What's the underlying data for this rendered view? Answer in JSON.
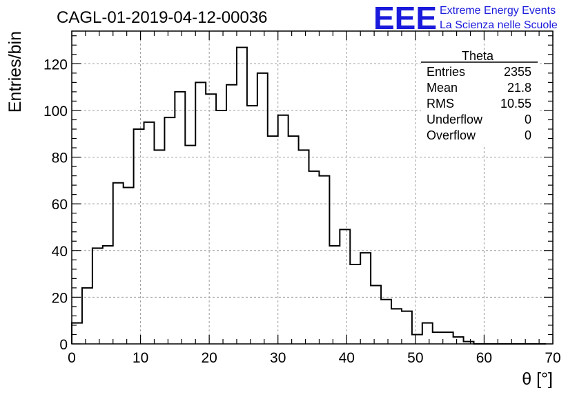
{
  "header": {
    "title": "CAGL-01-2019-04-12-00036",
    "logo_text": "EEE",
    "logo_line1": "Extreme Energy Events",
    "logo_line2": "La Scienza nelle Scuole",
    "logo_color": "#1a1adc"
  },
  "stats_box": {
    "name": "Theta",
    "rows": [
      {
        "label": "Entries",
        "value": "2355"
      },
      {
        "label": "Mean",
        "value": "21.8"
      },
      {
        "label": "RMS",
        "value": "10.55"
      },
      {
        "label": "Underflow",
        "value": "0"
      },
      {
        "label": "Overflow",
        "value": "0"
      }
    ]
  },
  "chart_data": {
    "type": "bar",
    "histogram_style": "step",
    "title": "CAGL-01-2019-04-12-00036",
    "xlabel": "θ [°]",
    "ylabel": "Entries/bin",
    "xlim": [
      0,
      70
    ],
    "ylim": [
      0,
      134
    ],
    "xticks": [
      0,
      10,
      20,
      30,
      40,
      50,
      60,
      70
    ],
    "yticks": [
      0,
      20,
      40,
      60,
      80,
      100,
      120
    ],
    "grid": true,
    "legend_position": "top-right",
    "bin_edges_start": 0,
    "bin_width": 1.5,
    "values": [
      9,
      24,
      41,
      42,
      69,
      67,
      92,
      95,
      83,
      97,
      108,
      85,
      112,
      107,
      100,
      111,
      127,
      102,
      116,
      89,
      98,
      89,
      83,
      74,
      72,
      42,
      49,
      34,
      39,
      25,
      19,
      15,
      14,
      4,
      9,
      5,
      5,
      3,
      1,
      0,
      0,
      0,
      0,
      0,
      0,
      0
    ]
  }
}
